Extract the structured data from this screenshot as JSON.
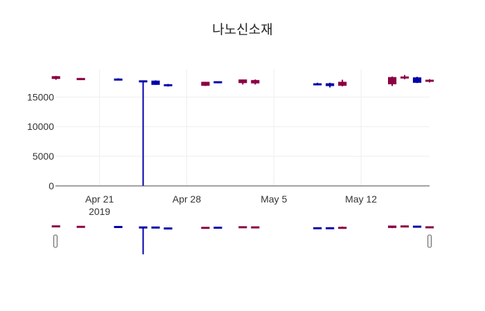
{
  "chart_data": {
    "type": "candlestick",
    "title": "나노신소재",
    "xlabel": "",
    "ylabel": "",
    "ylim": [
      0,
      19700
    ],
    "grid": true,
    "range_slider": true,
    "increasing_color": "#0000aa",
    "decreasing_color": "#8b0045",
    "y_ticks": [
      0,
      5000,
      10000,
      15000
    ],
    "x_ticks": [
      {
        "date": "2019-04-21",
        "label": "Apr 21",
        "sublabel": "2019"
      },
      {
        "date": "2019-04-28",
        "label": "Apr 28",
        "sublabel": ""
      },
      {
        "date": "2019-05-05",
        "label": "May 5",
        "sublabel": ""
      },
      {
        "date": "2019-05-12",
        "label": "May 12",
        "sublabel": ""
      }
    ],
    "x_range": [
      "2019-04-17T11:00",
      "2019-05-17T12:00"
    ],
    "candles": [
      {
        "date": "2019-04-17",
        "open": 18450,
        "high": 18550,
        "low": 17900,
        "close": 18100
      },
      {
        "date": "2019-04-19",
        "open": 18150,
        "high": 18200,
        "low": 17850,
        "close": 17900
      },
      {
        "date": "2019-04-22",
        "open": 17900,
        "high": 18150,
        "low": 17850,
        "close": 18050
      },
      {
        "date": "2019-04-24",
        "open": 17650,
        "high": 17750,
        "low": 0,
        "close": 17750
      },
      {
        "date": "2019-04-25",
        "open": 17100,
        "high": 17800,
        "low": 17050,
        "close": 17700
      },
      {
        "date": "2019-04-26",
        "open": 16950,
        "high": 17200,
        "low": 16750,
        "close": 17100
      },
      {
        "date": "2019-04-29",
        "open": 17500,
        "high": 17550,
        "low": 16850,
        "close": 16950
      },
      {
        "date": "2019-04-30",
        "open": 17400,
        "high": 17650,
        "low": 17300,
        "close": 17600
      },
      {
        "date": "2019-05-02",
        "open": 17900,
        "high": 17950,
        "low": 17100,
        "close": 17400
      },
      {
        "date": "2019-05-03",
        "open": 17800,
        "high": 17950,
        "low": 17100,
        "close": 17350
      },
      {
        "date": "2019-05-08",
        "open": 17050,
        "high": 17400,
        "low": 16950,
        "close": 17250
      },
      {
        "date": "2019-05-09",
        "open": 16900,
        "high": 17400,
        "low": 16600,
        "close": 17250
      },
      {
        "date": "2019-05-10",
        "open": 17500,
        "high": 17900,
        "low": 16800,
        "close": 16950
      },
      {
        "date": "2019-05-14",
        "open": 18300,
        "high": 18450,
        "low": 16850,
        "close": 17200
      },
      {
        "date": "2019-05-15",
        "open": 18400,
        "high": 18700,
        "low": 18000,
        "close": 18300
      },
      {
        "date": "2019-05-16",
        "open": 17450,
        "high": 18400,
        "low": 17350,
        "close": 18250
      },
      {
        "date": "2019-05-17",
        "open": 17850,
        "high": 18000,
        "low": 17450,
        "close": 17650
      }
    ]
  }
}
